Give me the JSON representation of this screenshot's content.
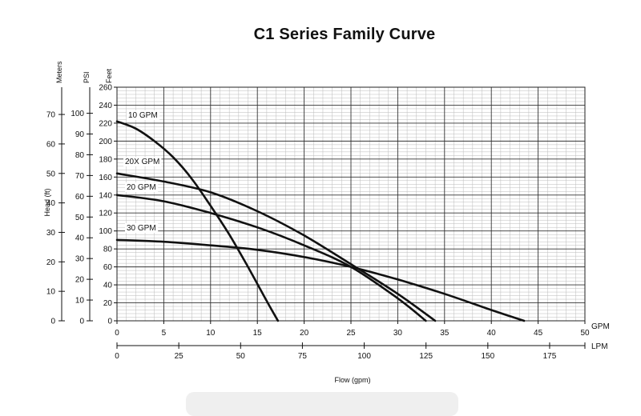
{
  "chart_data": {
    "type": "line",
    "title": "C1 Series Family Curve",
    "xlabel": "Flow (gpm)",
    "ylabel": "Head (ft)",
    "x_axis_gpm": {
      "unit": "GPM",
      "lim": [
        0,
        50
      ],
      "ticks": [
        0,
        5,
        10,
        15,
        20,
        25,
        30,
        35,
        40,
        45,
        50
      ]
    },
    "x_axis_lpm": {
      "unit": "LPM",
      "ticks": [
        0,
        25,
        50,
        75,
        100,
        125,
        150,
        175
      ]
    },
    "y_axis_feet": {
      "unit": "Feet",
      "lim": [
        0,
        260
      ],
      "ticks": [
        0,
        20,
        40,
        60,
        80,
        100,
        120,
        140,
        160,
        180,
        200,
        220,
        240,
        260
      ]
    },
    "y_axis_psi": {
      "unit": "PSI",
      "ticks": [
        0,
        10,
        20,
        30,
        40,
        50,
        60,
        70,
        80,
        90,
        100
      ]
    },
    "y_axis_meters": {
      "unit": "Meters",
      "ticks": [
        0,
        10,
        20,
        30,
        40,
        50,
        60,
        70
      ]
    },
    "grid": true,
    "series": [
      {
        "name": "10 GPM",
        "x": [
          0,
          2,
          4,
          6,
          8,
          10,
          12,
          14,
          16,
          17.2
        ],
        "y": [
          222,
          214,
          200,
          182,
          158,
          128,
          96,
          60,
          22,
          0
        ]
      },
      {
        "name": "20X GPM",
        "x": [
          0,
          5,
          10,
          15,
          20,
          25,
          30,
          34
        ],
        "y": [
          164,
          155,
          143,
          122,
          95,
          63,
          30,
          0
        ]
      },
      {
        "name": "20 GPM",
        "x": [
          0,
          5,
          10,
          15,
          20,
          25,
          30,
          33
        ],
        "y": [
          140,
          133,
          120,
          104,
          84,
          60,
          25,
          0
        ]
      },
      {
        "name": "30 GPM",
        "x": [
          0,
          5,
          10,
          15,
          20,
          25,
          30,
          35,
          40,
          43.5
        ],
        "y": [
          90,
          88,
          84,
          79,
          71,
          60,
          46,
          30,
          12,
          0
        ]
      }
    ]
  }
}
